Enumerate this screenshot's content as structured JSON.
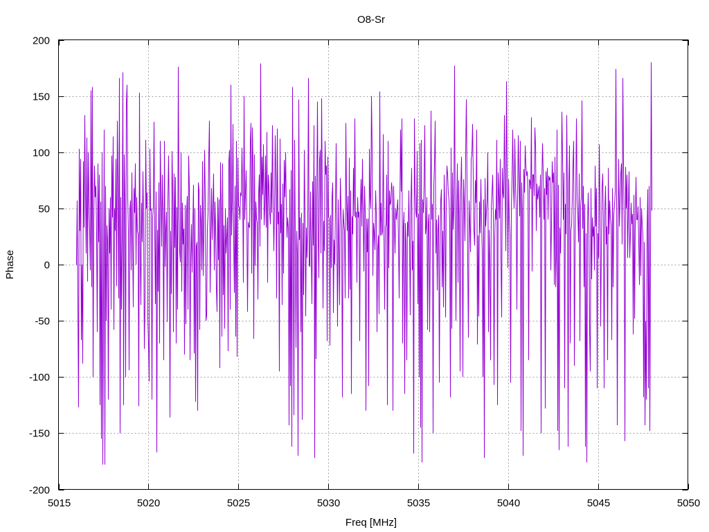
{
  "chart_data": {
    "type": "line",
    "title": "O8-Sr",
    "xlabel": "Freq [MHz]",
    "ylabel": "Phase",
    "xlim": [
      5015,
      5050
    ],
    "ylim": [
      -200,
      200
    ],
    "xticks": [
      "5015",
      "5020",
      "5025",
      "5030",
      "5035",
      "5040",
      "5045",
      "5050"
    ],
    "yticks": [
      "200",
      "150",
      "100",
      "50",
      "0",
      "-50",
      "-100",
      "-150",
      "-200"
    ],
    "grid": true,
    "series": [
      {
        "color": "#9400d3",
        "x_start": 5016.0,
        "x_end": 5048.0,
        "values": [
          0,
          57,
          -35,
          -127,
          103,
          30,
          94,
          -67,
          0,
          -88,
          92,
          33,
          133,
          62,
          10,
          113,
          -15,
          100,
          57,
          30,
          -5,
          155,
          -20,
          158,
          -100,
          40,
          88,
          60,
          70,
          28,
          -60,
          90,
          20,
          80,
          -125,
          56,
          -155,
          100,
          -178,
          -33,
          120,
          -178,
          70,
          -50,
          35,
          20,
          -120,
          50,
          10,
          60,
          -40,
          97,
          42,
          114,
          -58,
          50,
          30,
          94,
          -19,
          128,
          70,
          -30,
          166,
          -150,
          60,
          -40,
          20,
          171,
          -125,
          98,
          56,
          -100,
          143,
          160,
          60,
          31,
          -94,
          48,
          57,
          -5,
          82,
          24,
          -38,
          68,
          46,
          90,
          0,
          60,
          30,
          27,
          -126,
          153,
          12,
          -36,
          55,
          20,
          83,
          34,
          -75,
          -31,
          111,
          50,
          64,
          -48,
          -70,
          -104,
          103,
          48,
          50,
          -120,
          42,
          52,
          127,
          28,
          -35,
          65,
          -167,
          31,
          -24,
          73,
          -70,
          110,
          62,
          16,
          80,
          40,
          -85,
          110,
          -2,
          30,
          47,
          -51,
          56,
          97,
          44,
          -136,
          30,
          -26,
          101,
          64,
          -60,
          81,
          15,
          78,
          -70,
          51,
          -40,
          176,
          47,
          12,
          2,
          100,
          -24,
          55,
          18,
          32,
          -80,
          53,
          -53,
          47,
          61,
          -40,
          97,
          68,
          -85,
          6,
          36,
          -7,
          34,
          71,
          -79,
          50,
          -122,
          16,
          20,
          -130,
          73,
          66,
          -58,
          53,
          38,
          -5,
          92,
          -10,
          36,
          102,
          58,
          -50,
          -45,
          31,
          46,
          94,
          128,
          -25,
          24,
          68,
          22,
          50,
          81,
          -5,
          56,
          32,
          -20,
          -42,
          60,
          4,
          58,
          -92,
          91,
          52,
          -64,
          90,
          -27,
          35,
          -57,
          50,
          10,
          24,
          42,
          -77,
          92,
          102,
          -40,
          160,
          26,
          56,
          125,
          21,
          -25,
          70,
          -64,
          110,
          -82,
          95,
          52,
          51,
          40,
          64,
          61,
          104,
          65,
          -16,
          150,
          40,
          64,
          84,
          40,
          -42,
          38,
          34,
          33,
          108,
          126,
          -8,
          122,
          86,
          -66,
          98,
          -1,
          56,
          41,
          37,
          -31,
          63,
          80,
          16,
          179,
          40,
          96,
          62,
          107,
          35,
          52,
          97,
          33,
          118,
          -16,
          80,
          69,
          46,
          36,
          82,
          46,
          124,
          60,
          12,
          50,
          115,
          75,
          -30,
          121,
          36,
          47,
          -95,
          112,
          28,
          54,
          -36,
          72,
          -8,
          93,
          60,
          100,
          53,
          24,
          42,
          33,
          -143,
          67,
          -108,
          84,
          -162,
          158,
          22,
          -134,
          111,
          20,
          -74,
          30,
          10,
          -170,
          147,
          22,
          42,
          -60,
          46,
          -138,
          37,
          -27,
          102,
          42,
          -46,
          33,
          6,
          41,
          166,
          0,
          -2,
          65,
          12,
          -35,
          74,
          17,
          124,
          -172,
          79,
          -84,
          61,
          145,
          28,
          -12,
          93,
          102,
          10,
          148,
          58,
          -39,
          39,
          12,
          110,
          80,
          88,
          -68,
          96,
          43,
          41,
          -72,
          44,
          -3,
          59,
          73,
          -43,
          22,
          0,
          50,
          108,
          25,
          -55,
          58,
          13,
          -36,
          77,
          50,
          31,
          -118,
          49,
          38,
          30,
          -30,
          126,
          58,
          30,
          61,
          -30,
          95,
          -22,
          66,
          -115,
          43,
          27,
          86,
          43,
          130,
          42,
          47,
          -16,
          60,
          42,
          47,
          -68,
          51,
          76,
          34,
          94,
          43,
          -6,
          70,
          47,
          -130,
          41,
          11,
          41,
          -108,
          103,
          61,
          50,
          150,
          100,
          -10,
          37,
          28,
          13,
          66,
          45,
          -60,
          14,
          26,
          -44,
          154,
          26,
          55,
          26,
          30,
          116,
          30,
          -40,
          33,
          36,
          80,
          -125,
          110,
          -3,
          66,
          53,
          56,
          73,
          66,
          -130,
          70,
          37,
          10,
          50,
          40,
          50,
          58,
          21,
          -30,
          52,
          120,
          65,
          130,
          -70,
          33,
          47,
          -115,
          37,
          18,
          -85,
          38,
          25,
          66,
          20,
          -45,
          57,
          86,
          -5,
          21,
          -168,
          130,
          64,
          47,
          42,
          101,
          -35,
          45,
          -100,
          108,
          -145,
          111,
          -176,
          58,
          46,
          71,
          124,
          27,
          33,
          60,
          -58,
          36,
          45,
          -60,
          30,
          137,
          40,
          54,
          -150,
          70,
          90,
          128,
          10,
          40,
          -23,
          31,
          44,
          -105,
          11,
          57,
          67,
          -20,
          30,
          -38,
          80,
          44,
          -47,
          60,
          88,
          80,
          63,
          58,
          34,
          -118,
          104,
          -57,
          82,
          31,
          50,
          177,
          34,
          -50,
          50,
          90,
          -16,
          75,
          35,
          -95,
          67,
          96,
          37,
          -100,
          76,
          54,
          21,
          98,
          147,
          75,
          0,
          -65,
          57,
          36,
          11,
          94,
          98,
          125,
          76,
          30,
          17,
          75,
          55,
          120,
          -71,
          26,
          -46,
          56,
          28,
          76,
          36,
          10,
          -100,
          58,
          -172,
          77,
          34,
          47,
          58,
          100,
          -60,
          31,
          0,
          -85,
          51,
          63,
          80,
          41,
          -107,
          24,
          49,
          40,
          111,
          -125,
          82,
          63,
          41,
          94,
          5,
          -47,
          86,
          64,
          59,
          133,
          70,
          12,
          163,
          80,
          -3,
          76,
          40,
          26,
          -105,
          52,
          76,
          120,
          70,
          50,
          112,
          70,
          51,
          -40,
          60,
          115,
          78,
          43,
          110,
          -148,
          73,
          44,
          -170,
          85,
          64,
          106,
          87,
          79,
          83,
          63,
          -85,
          76,
          74,
          67,
          131,
          -6,
          80,
          80,
          61,
          122,
          105,
          30,
          72,
          58,
          64,
          70,
          42,
          80,
          -150,
          74,
          108,
          82,
          40,
          68,
          -128,
          83,
          62,
          86,
          40,
          79,
          75,
          78,
          -5,
          37,
          92,
          73,
          82,
          -18,
          96,
          -20,
          10,
          120,
          -148,
          71,
          -165,
          33,
          10,
          53,
          136,
          94,
          40,
          82,
          -110,
          54,
          27,
          133,
          62,
          -162,
          73,
          106,
          -70,
          30,
          35,
          59,
          90,
          110,
          -90,
          12,
          62,
          130,
          58,
          45,
          20,
          81,
          -68,
          52,
          60,
          146,
          32,
          70,
          -20,
          54,
          -162,
          28,
          -176,
          36,
          64,
          30,
          -60,
          -95,
          68,
          -13,
          42,
          25,
          34,
          -5,
          88,
          34,
          68,
          -110,
          28,
          6,
          107,
          54,
          -55,
          17,
          69,
          81,
          32,
          -110,
          48,
          70,
          18,
          34,
          -85,
          86,
          27,
          57,
          42,
          35,
          -67,
          68,
          -20,
          45,
          53,
          65,
          174,
          52,
          -143,
          31,
          94,
          34,
          56,
          81,
          90,
          18,
          166,
          87,
          37,
          -157,
          87,
          50,
          80,
          6,
          52,
          83,
          6,
          28,
          55,
          36,
          45,
          -62,
          62,
          -48,
          40,
          78,
          40,
          40,
          52,
          17,
          -18,
          60,
          -10,
          50,
          36,
          25,
          -118,
          20,
          -143,
          -50,
          -120,
          30,
          67,
          -110,
          70,
          -148,
          20,
          180,
          48
        ]
      }
    ]
  }
}
